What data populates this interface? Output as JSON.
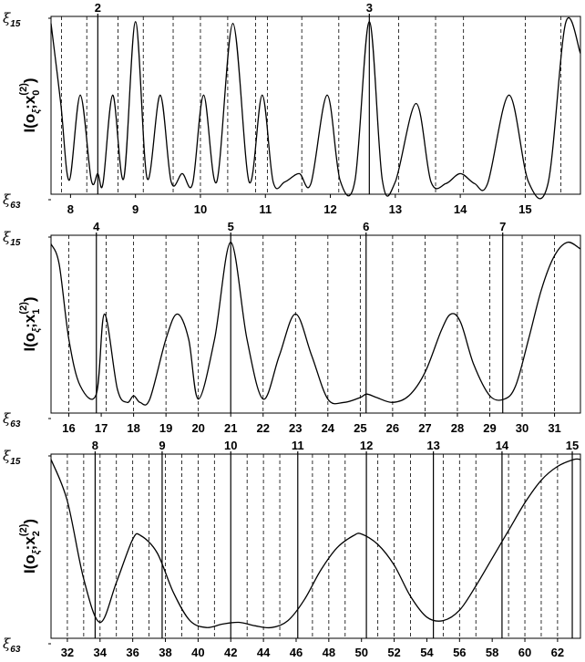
{
  "chart_data": [
    {
      "type": "line",
      "ylabel": "I(o_ξ;x_0^(2))",
      "ylabel_parts": {
        "main": "I(o",
        "sub": "ξ",
        "mid": ";x",
        "sub2": "0",
        "sup": "(2)",
        "end": ")"
      },
      "y_tick_top": {
        "sym": "ξ",
        "sub": "15"
      },
      "y_tick_bottom": {
        "sym": "ξ",
        "sub": "63"
      },
      "xlim": [
        7.7,
        15.85
      ],
      "x_ticks": [
        "8",
        "9",
        "10",
        "11",
        "12",
        "13",
        "14",
        "15"
      ],
      "x_tick_values": [
        8,
        9,
        10,
        11,
        12,
        13,
        14,
        15
      ],
      "top_labels": [
        "2",
        "3"
      ],
      "top_label_values": [
        8.42,
        12.6
      ],
      "solid_lines": [
        8.42,
        12.6
      ],
      "dashed_lines": [
        7.86,
        8.25,
        8.73,
        9.12,
        9.58,
        10.0,
        10.42,
        10.85,
        11.03,
        11.56,
        12.13,
        13.05,
        13.62,
        14.05,
        15.0,
        15.55
      ],
      "curve_x": [
        7.7,
        7.85,
        7.98,
        8.15,
        8.32,
        8.42,
        8.5,
        8.65,
        8.82,
        9.0,
        9.18,
        9.38,
        9.55,
        9.72,
        9.88,
        10.05,
        10.25,
        10.5,
        10.75,
        10.95,
        11.12,
        11.3,
        11.52,
        11.7,
        11.95,
        12.15,
        12.38,
        12.6,
        12.8,
        13.0,
        13.32,
        13.55,
        13.78,
        14.0,
        14.22,
        14.42,
        14.75,
        15.05,
        15.35,
        15.62,
        15.85
      ],
      "curve_y": [
        0.98,
        0.5,
        0.04,
        0.55,
        0.04,
        0.08,
        0.02,
        0.55,
        0.05,
        0.99,
        0.05,
        0.55,
        0.03,
        0.08,
        0.02,
        0.55,
        0.03,
        0.98,
        0.03,
        0.55,
        0.03,
        0.03,
        0.08,
        0.02,
        0.55,
        0.04,
        0.04,
        0.99,
        0.04,
        0.03,
        0.5,
        0.03,
        0.02,
        0.08,
        0.02,
        0.02,
        0.55,
        0.03,
        0.02,
        0.98,
        0.8
      ]
    },
    {
      "type": "line",
      "ylabel": "I(o_ξ;x_1^(2))",
      "ylabel_parts": {
        "main": "I(o",
        "sub": "ξ",
        "mid": ";x",
        "sub2": "1",
        "sup": "(2)",
        "end": ")"
      },
      "y_tick_top": {
        "sym": "ξ",
        "sub": "15"
      },
      "y_tick_bottom": {
        "sym": "ξ",
        "sub": "63"
      },
      "xlim": [
        15.45,
        31.8
      ],
      "x_ticks": [
        "16",
        "17",
        "18",
        "19",
        "20",
        "21",
        "22",
        "23",
        "24",
        "25",
        "26",
        "27",
        "28",
        "29",
        "30",
        "31"
      ],
      "x_tick_values": [
        16,
        17,
        18,
        19,
        20,
        21,
        22,
        23,
        24,
        25,
        26,
        27,
        28,
        29,
        30,
        31
      ],
      "top_labels": [
        "4",
        "5",
        "6",
        "7"
      ],
      "top_label_values": [
        16.85,
        21.0,
        25.18,
        29.4
      ],
      "solid_lines": [
        16.85,
        21.0,
        25.18,
        29.4
      ],
      "dashed_lines": [
        16.0,
        17.15,
        18.0,
        19.0,
        20.0,
        22.0,
        23.0,
        24.0,
        25.0,
        26.0,
        27.0,
        28.0,
        29.0,
        30.0,
        31.0
      ],
      "curve_x": [
        15.45,
        15.7,
        16.0,
        16.35,
        16.85,
        17.1,
        17.5,
        17.8,
        18.0,
        18.2,
        18.5,
        19.0,
        19.35,
        19.7,
        20.0,
        20.5,
        21.0,
        21.5,
        22.0,
        22.5,
        23.0,
        23.5,
        24.0,
        24.5,
        25.0,
        25.2,
        25.5,
        26.0,
        26.5,
        27.0,
        27.5,
        27.8,
        28.1,
        28.5,
        29.0,
        29.45,
        29.8,
        30.2,
        30.6,
        31.0,
        31.4,
        31.8
      ],
      "curve_y": [
        0.97,
        0.85,
        0.4,
        0.12,
        0.07,
        0.55,
        0.1,
        0.02,
        0.06,
        0.02,
        0.04,
        0.4,
        0.55,
        0.4,
        0.04,
        0.4,
        0.98,
        0.4,
        0.04,
        0.3,
        0.55,
        0.3,
        0.04,
        0.02,
        0.05,
        0.07,
        0.05,
        0.02,
        0.06,
        0.2,
        0.45,
        0.55,
        0.5,
        0.25,
        0.06,
        0.04,
        0.12,
        0.4,
        0.7,
        0.9,
        0.98,
        0.94
      ]
    },
    {
      "type": "line",
      "ylabel": "I(o_ξ;x_2^(2))",
      "ylabel_parts": {
        "main": "I(o",
        "sub": "ξ",
        "mid": ";x",
        "sub2": "2",
        "sup": "(2)",
        "end": ")"
      },
      "y_tick_top": {
        "sym": "ξ",
        "sub": "15"
      },
      "y_tick_bottom": {
        "sym": "ξ",
        "sub": "63"
      },
      "xlim": [
        31.0,
        63.4
      ],
      "x_ticks": [
        "32",
        "34",
        "36",
        "38",
        "40",
        "42",
        "44",
        "46",
        "48",
        "50",
        "52",
        "54",
        "56",
        "58",
        "60",
        "62"
      ],
      "x_tick_values": [
        32,
        34,
        36,
        38,
        40,
        42,
        44,
        46,
        48,
        50,
        52,
        54,
        56,
        58,
        60,
        62
      ],
      "top_labels": [
        "8",
        "9",
        "10",
        "11",
        "12",
        "13",
        "14",
        "15"
      ],
      "top_label_values": [
        33.7,
        37.8,
        42.0,
        46.1,
        50.3,
        54.4,
        58.6,
        62.9
      ],
      "solid_lines": [
        33.7,
        37.8,
        42.0,
        46.1,
        50.3,
        54.4,
        58.6,
        62.9
      ],
      "dashed_lines": [
        32.0,
        33.0,
        34.0,
        35.0,
        36.0,
        37.0,
        38.0,
        39.0,
        40.0,
        41.0,
        43.0,
        44.0,
        45.0,
        47.0,
        48.0,
        49.0,
        51.0,
        52.0,
        53.0,
        55.0,
        56.0,
        57.0,
        59.0,
        60.0,
        61.0,
        62.0
      ],
      "curve_x": [
        31.0,
        32.0,
        33.0,
        34.0,
        35.0,
        36.0,
        36.5,
        37.5,
        38.5,
        39.5,
        40.5,
        41.5,
        42.5,
        43.5,
        44.5,
        45.5,
        46.5,
        47.5,
        48.5,
        49.5,
        50.0,
        51.0,
        52.0,
        53.0,
        54.0,
        55.0,
        56.0,
        57.0,
        58.0,
        59.0,
        60.0,
        61.0,
        62.0,
        63.0,
        63.4
      ],
      "curve_y": [
        0.99,
        0.75,
        0.3,
        0.05,
        0.28,
        0.53,
        0.55,
        0.45,
        0.22,
        0.06,
        0.02,
        0.04,
        0.05,
        0.03,
        0.02,
        0.06,
        0.18,
        0.35,
        0.48,
        0.55,
        0.56,
        0.5,
        0.38,
        0.2,
        0.08,
        0.06,
        0.12,
        0.26,
        0.42,
        0.58,
        0.74,
        0.87,
        0.95,
        0.99,
        0.99
      ]
    }
  ]
}
